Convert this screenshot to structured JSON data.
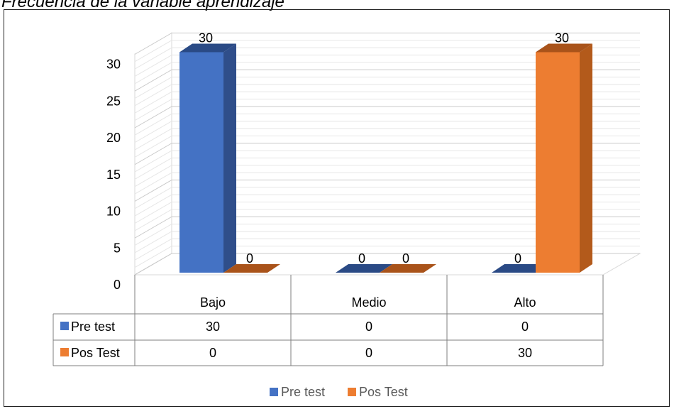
{
  "title": "Frecuencia de la variable aprendizaje",
  "colors": {
    "pre_front": "#4472C4",
    "pre_side": "#2F4E8A",
    "pre_top": "#2A4A85",
    "pos_front": "#ED7D31",
    "pos_side": "#B35A1B",
    "pos_top": "#A9531A",
    "grid": "#D9D9D9",
    "table_border": "#7F7F7F"
  },
  "chart_data": {
    "type": "bar",
    "subtype": "3d-clustered-column-with-data-table",
    "categories": [
      "Bajo",
      "Medio",
      "Alto"
    ],
    "series": [
      {
        "name": "Pre test",
        "values": [
          30,
          0,
          0
        ]
      },
      {
        "name": "Pos Test",
        "values": [
          0,
          0,
          30
        ]
      }
    ],
    "ylim": [
      0,
      30
    ],
    "yticks": [
      0,
      5,
      10,
      15,
      20,
      25,
      30
    ],
    "data_labels": true,
    "grid": true,
    "legend": "bottom"
  }
}
